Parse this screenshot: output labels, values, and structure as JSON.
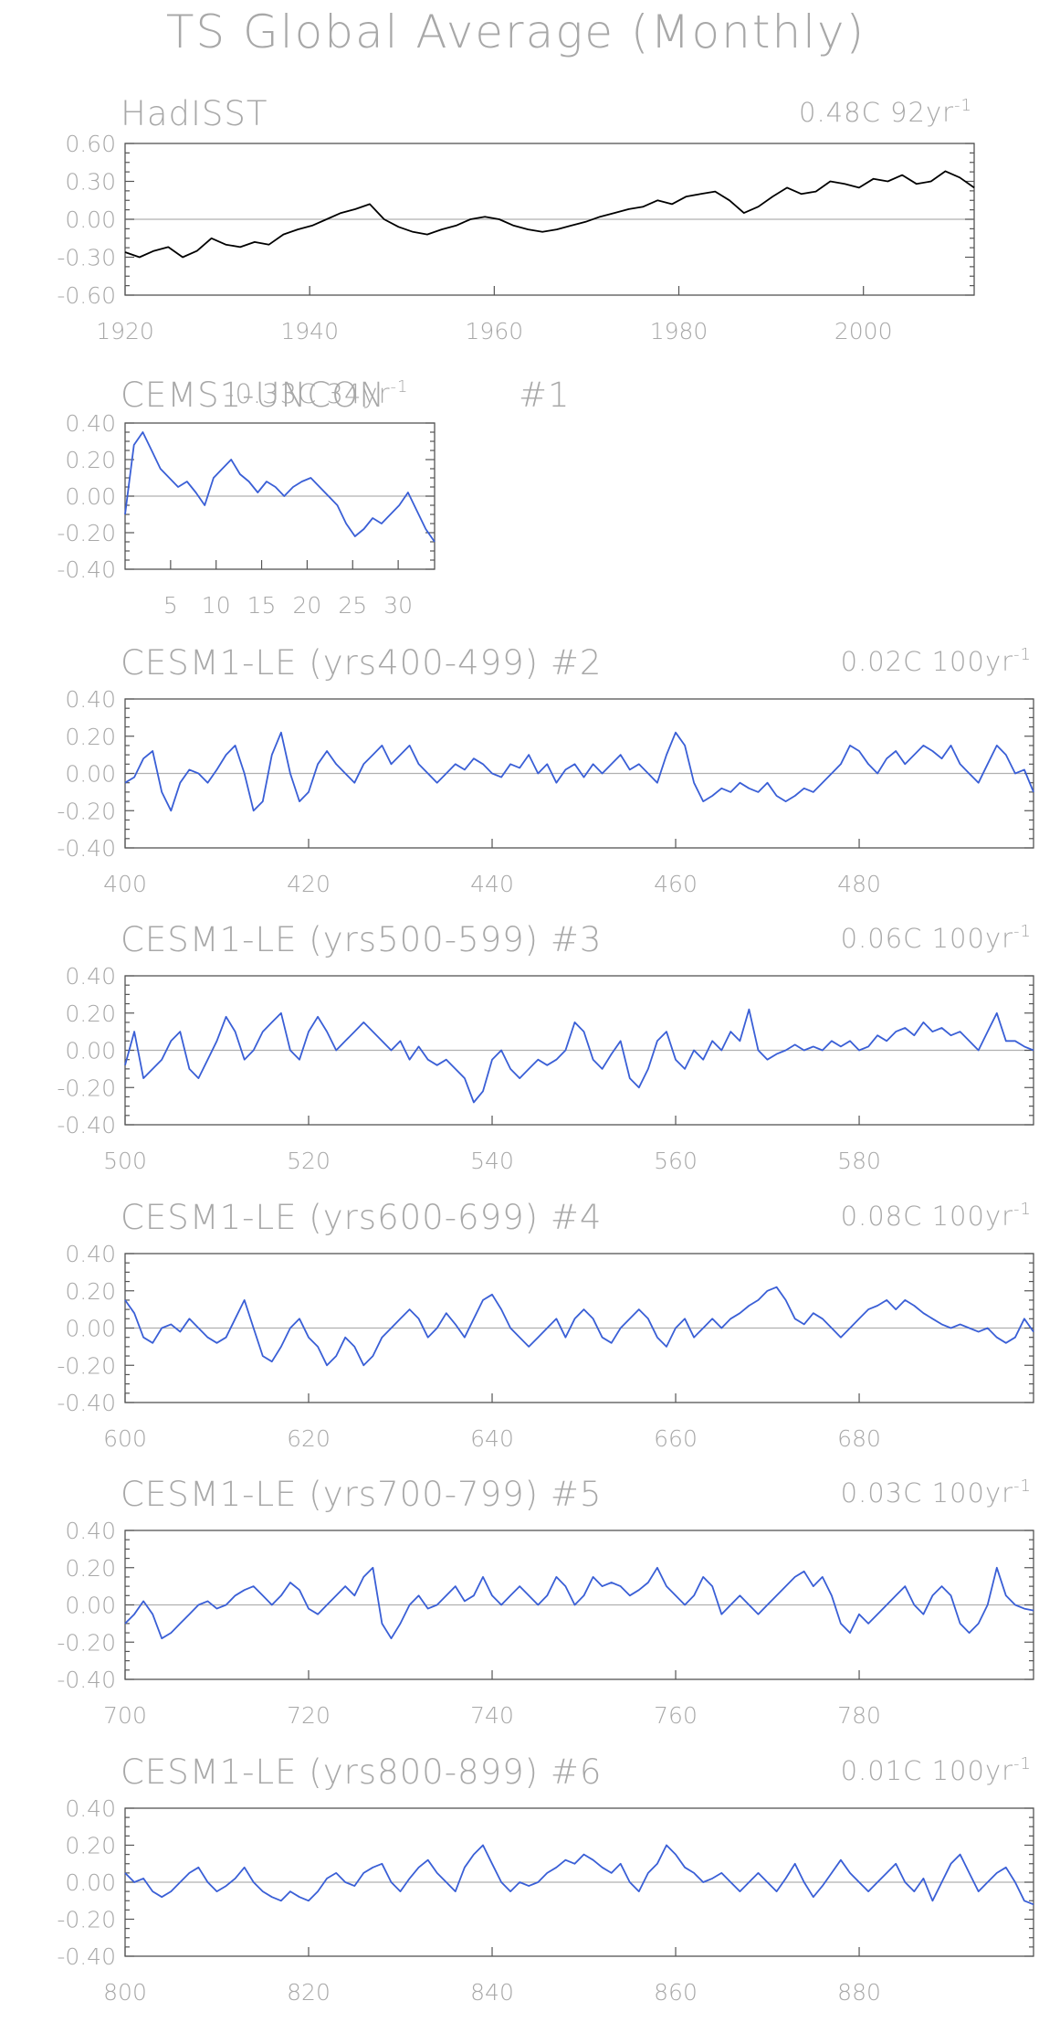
{
  "title": "TS Global Average (Monthly)",
  "colors": {
    "observed": "#000000",
    "model": "#3a5fd6",
    "text": "#a8a8a8"
  },
  "chart_data": [
    {
      "type": "line",
      "title": "HadISST",
      "trend": "0.48C",
      "trend_period": "92yr",
      "trend_sup": "-1",
      "x_range": [
        1920,
        2012
      ],
      "ylim": [
        -0.6,
        0.6
      ],
      "y_ticks": [
        "0.60",
        "0.30",
        "0.00",
        "-0.30",
        "-0.60"
      ],
      "x_ticks": [
        "1920",
        "1940",
        "1960",
        "1980",
        "2000"
      ],
      "series": [
        {
          "values": [
            -0.26,
            -0.3,
            -0.25,
            -0.22,
            -0.3,
            -0.25,
            -0.15,
            -0.2,
            -0.22,
            -0.18,
            -0.2,
            -0.12,
            -0.08,
            -0.05,
            0.0,
            0.05,
            0.08,
            0.12,
            0.0,
            -0.06,
            -0.1,
            -0.12,
            -0.08,
            -0.05,
            0.0,
            0.02,
            0.0,
            -0.05,
            -0.08,
            -0.1,
            -0.08,
            -0.05,
            -0.02,
            0.02,
            0.05,
            0.08,
            0.1,
            0.15,
            0.12,
            0.18,
            0.2,
            0.22,
            0.15,
            0.05,
            0.1,
            0.18,
            0.25,
            0.2,
            0.22,
            0.3,
            0.28,
            0.25,
            0.32,
            0.3,
            0.35,
            0.28,
            0.3,
            0.38,
            0.33,
            0.25
          ]
        }
      ]
    },
    {
      "type": "line",
      "title": "CEMS1-UNCON",
      "trend": "-0.33C",
      "trend_period": "34yr",
      "trend_sup": "-1",
      "index": "#1",
      "x_range": [
        0,
        34
      ],
      "ylim": [
        -0.4,
        0.4
      ],
      "y_ticks": [
        "0.40",
        "0.20",
        "0.00",
        "-0.20",
        "-0.40"
      ],
      "x_ticks": [
        "5",
        "10",
        "15",
        "20",
        "25",
        "30"
      ],
      "series": [
        {
          "values": [
            -0.1,
            0.28,
            0.35,
            0.25,
            0.15,
            0.1,
            0.05,
            0.08,
            0.02,
            -0.05,
            0.1,
            0.15,
            0.2,
            0.12,
            0.08,
            0.02,
            0.08,
            0.05,
            0.0,
            0.05,
            0.08,
            0.1,
            0.05,
            0.0,
            -0.05,
            -0.15,
            -0.22,
            -0.18,
            -0.12,
            -0.15,
            -0.1,
            -0.05,
            0.02,
            -0.08,
            -0.18,
            -0.25
          ]
        }
      ]
    },
    {
      "type": "line",
      "title": "CESM1-LE (yrs400-499)",
      "index": "#2",
      "trend": "0.02C",
      "trend_period": "100yr",
      "trend_sup": "-1",
      "x_range": [
        400,
        499
      ],
      "ylim": [
        -0.4,
        0.4
      ],
      "y_ticks": [
        "0.40",
        "0.20",
        "0.00",
        "-0.20",
        "-0.40"
      ],
      "x_ticks": [
        "400",
        "420",
        "440",
        "460",
        "480"
      ],
      "series": [
        {
          "values": [
            -0.05,
            -0.02,
            0.08,
            0.12,
            -0.1,
            -0.2,
            -0.05,
            0.02,
            0.0,
            -0.05,
            0.02,
            0.1,
            0.15,
            0.0,
            -0.2,
            -0.15,
            0.1,
            0.22,
            0.0,
            -0.15,
            -0.1,
            0.05,
            0.12,
            0.05,
            0.0,
            -0.05,
            0.05,
            0.1,
            0.15,
            0.05,
            0.1,
            0.15,
            0.05,
            0.0,
            -0.05,
            0.0,
            0.05,
            0.02,
            0.08,
            0.05,
            0.0,
            -0.02,
            0.05,
            0.03,
            0.1,
            0.0,
            0.05,
            -0.05,
            0.02,
            0.05,
            -0.02,
            0.05,
            0.0,
            0.05,
            0.1,
            0.02,
            0.05,
            0.0,
            -0.05,
            0.1,
            0.22,
            0.15,
            -0.05,
            -0.15,
            -0.12,
            -0.08,
            -0.1,
            -0.05,
            -0.08,
            -0.1,
            -0.05,
            -0.12,
            -0.15,
            -0.12,
            -0.08,
            -0.1,
            -0.05,
            0.0,
            0.05,
            0.15,
            0.12,
            0.05,
            0.0,
            0.08,
            0.12,
            0.05,
            0.1,
            0.15,
            0.12,
            0.08,
            0.15,
            0.05,
            0.0,
            -0.05,
            0.05,
            0.15,
            0.1,
            0.0,
            0.02,
            -0.1
          ]
        }
      ]
    },
    {
      "type": "line",
      "title": "CESM1-LE (yrs500-599)",
      "index": "#3",
      "trend": "0.06C",
      "trend_period": "100yr",
      "trend_sup": "-1",
      "x_range": [
        500,
        599
      ],
      "ylim": [
        -0.4,
        0.4
      ],
      "y_ticks": [
        "0.40",
        "0.20",
        "0.00",
        "-0.20",
        "-0.40"
      ],
      "x_ticks": [
        "500",
        "520",
        "540",
        "560",
        "580"
      ],
      "series": [
        {
          "values": [
            -0.08,
            0.1,
            -0.15,
            -0.1,
            -0.05,
            0.05,
            0.1,
            -0.1,
            -0.15,
            -0.05,
            0.05,
            0.18,
            0.1,
            -0.05,
            0.0,
            0.1,
            0.15,
            0.2,
            0.0,
            -0.05,
            0.1,
            0.18,
            0.1,
            0.0,
            0.05,
            0.1,
            0.15,
            0.1,
            0.05,
            0.0,
            0.05,
            -0.05,
            0.02,
            -0.05,
            -0.08,
            -0.05,
            -0.1,
            -0.15,
            -0.28,
            -0.22,
            -0.05,
            0.0,
            -0.1,
            -0.15,
            -0.1,
            -0.05,
            -0.08,
            -0.05,
            0.0,
            0.15,
            0.1,
            -0.05,
            -0.1,
            -0.02,
            0.05,
            -0.15,
            -0.2,
            -0.1,
            0.05,
            0.1,
            -0.05,
            -0.1,
            0.0,
            -0.05,
            0.05,
            0.0,
            0.1,
            0.05,
            0.22,
            0.0,
            -0.05,
            -0.02,
            0.0,
            0.03,
            0.0,
            0.02,
            0.0,
            0.05,
            0.02,
            0.05,
            0.0,
            0.02,
            0.08,
            0.05,
            0.1,
            0.12,
            0.08,
            0.15,
            0.1,
            0.12,
            0.08,
            0.1,
            0.05,
            0.0,
            0.1,
            0.2,
            0.05,
            0.05,
            0.02,
            0.0
          ]
        }
      ]
    },
    {
      "type": "line",
      "title": "CESM1-LE (yrs600-699)",
      "index": "#4",
      "trend": "0.08C",
      "trend_period": "100yr",
      "trend_sup": "-1",
      "x_range": [
        600,
        699
      ],
      "ylim": [
        -0.4,
        0.4
      ],
      "y_ticks": [
        "0.40",
        "0.20",
        "0.00",
        "-0.20",
        "-0.40"
      ],
      "x_ticks": [
        "600",
        "620",
        "640",
        "660",
        "680"
      ],
      "series": [
        {
          "values": [
            0.15,
            0.08,
            -0.05,
            -0.08,
            0.0,
            0.02,
            -0.02,
            0.05,
            0.0,
            -0.05,
            -0.08,
            -0.05,
            0.05,
            0.15,
            0.0,
            -0.15,
            -0.18,
            -0.1,
            0.0,
            0.05,
            -0.05,
            -0.1,
            -0.2,
            -0.15,
            -0.05,
            -0.1,
            -0.2,
            -0.15,
            -0.05,
            0.0,
            0.05,
            0.1,
            0.05,
            -0.05,
            0.0,
            0.08,
            0.02,
            -0.05,
            0.05,
            0.15,
            0.18,
            0.1,
            0.0,
            -0.05,
            -0.1,
            -0.05,
            0.0,
            0.05,
            -0.05,
            0.05,
            0.1,
            0.05,
            -0.05,
            -0.08,
            0.0,
            0.05,
            0.1,
            0.05,
            -0.05,
            -0.1,
            0.0,
            0.05,
            -0.05,
            0.0,
            0.05,
            0.0,
            0.05,
            0.08,
            0.12,
            0.15,
            0.2,
            0.22,
            0.15,
            0.05,
            0.02,
            0.08,
            0.05,
            0.0,
            -0.05,
            0.0,
            0.05,
            0.1,
            0.12,
            0.15,
            0.1,
            0.15,
            0.12,
            0.08,
            0.05,
            0.02,
            0.0,
            0.02,
            0.0,
            -0.02,
            0.0,
            -0.05,
            -0.08,
            -0.05,
            0.05,
            -0.02
          ]
        }
      ]
    },
    {
      "type": "line",
      "title": "CESM1-LE (yrs700-799)",
      "index": "#5",
      "trend": "0.03C",
      "trend_period": "100yr",
      "trend_sup": "-1",
      "x_range": [
        700,
        799
      ],
      "ylim": [
        -0.4,
        0.4
      ],
      "y_ticks": [
        "0.40",
        "0.20",
        "0.00",
        "-0.20",
        "-0.40"
      ],
      "x_ticks": [
        "700",
        "720",
        "740",
        "760",
        "780"
      ],
      "series": [
        {
          "values": [
            -0.1,
            -0.05,
            0.02,
            -0.05,
            -0.18,
            -0.15,
            -0.1,
            -0.05,
            0.0,
            0.02,
            -0.02,
            0.0,
            0.05,
            0.08,
            0.1,
            0.05,
            0.0,
            0.05,
            0.12,
            0.08,
            -0.02,
            -0.05,
            0.0,
            0.05,
            0.1,
            0.05,
            0.15,
            0.2,
            -0.1,
            -0.18,
            -0.1,
            0.0,
            0.05,
            -0.02,
            0.0,
            0.05,
            0.1,
            0.02,
            0.05,
            0.15,
            0.05,
            0.0,
            0.05,
            0.1,
            0.05,
            0.0,
            0.05,
            0.15,
            0.1,
            0.0,
            0.05,
            0.15,
            0.1,
            0.12,
            0.1,
            0.05,
            0.08,
            0.12,
            0.2,
            0.1,
            0.05,
            0.0,
            0.05,
            0.15,
            0.1,
            -0.05,
            0.0,
            0.05,
            0.0,
            -0.05,
            0.0,
            0.05,
            0.1,
            0.15,
            0.18,
            0.1,
            0.15,
            0.05,
            -0.1,
            -0.15,
            -0.05,
            -0.1,
            -0.05,
            0.0,
            0.05,
            0.1,
            0.0,
            -0.05,
            0.05,
            0.1,
            0.05,
            -0.1,
            -0.15,
            -0.1,
            0.0,
            0.2,
            0.05,
            0.0,
            -0.02,
            -0.03
          ]
        }
      ]
    },
    {
      "type": "line",
      "title": "CESM1-LE (yrs800-899)",
      "index": "#6",
      "trend": "0.01C",
      "trend_period": "100yr",
      "trend_sup": "-1",
      "x_range": [
        800,
        899
      ],
      "ylim": [
        -0.4,
        0.4
      ],
      "y_ticks": [
        "0.40",
        "0.20",
        "0.00",
        "-0.20",
        "-0.40"
      ],
      "x_ticks": [
        "800",
        "820",
        "840",
        "860",
        "880"
      ],
      "series": [
        {
          "values": [
            0.05,
            0.0,
            0.02,
            -0.05,
            -0.08,
            -0.05,
            0.0,
            0.05,
            0.08,
            0.0,
            -0.05,
            -0.02,
            0.02,
            0.08,
            0.0,
            -0.05,
            -0.08,
            -0.1,
            -0.05,
            -0.08,
            -0.1,
            -0.05,
            0.02,
            0.05,
            0.0,
            -0.02,
            0.05,
            0.08,
            0.1,
            0.0,
            -0.05,
            0.02,
            0.08,
            0.12,
            0.05,
            0.0,
            -0.05,
            0.08,
            0.15,
            0.2,
            0.1,
            0.0,
            -0.05,
            0.0,
            -0.02,
            0.0,
            0.05,
            0.08,
            0.12,
            0.1,
            0.15,
            0.12,
            0.08,
            0.05,
            0.1,
            0.0,
            -0.05,
            0.05,
            0.1,
            0.2,
            0.15,
            0.08,
            0.05,
            0.0,
            0.02,
            0.05,
            0.0,
            -0.05,
            0.0,
            0.05,
            0.0,
            -0.05,
            0.02,
            0.1,
            0.0,
            -0.08,
            -0.02,
            0.05,
            0.12,
            0.05,
            0.0,
            -0.05,
            0.0,
            0.05,
            0.1,
            0.0,
            -0.05,
            0.02,
            -0.1,
            0.0,
            0.1,
            0.15,
            0.05,
            -0.05,
            0.0,
            0.05,
            0.08,
            0.0,
            -0.1,
            -0.12
          ]
        }
      ]
    }
  ]
}
